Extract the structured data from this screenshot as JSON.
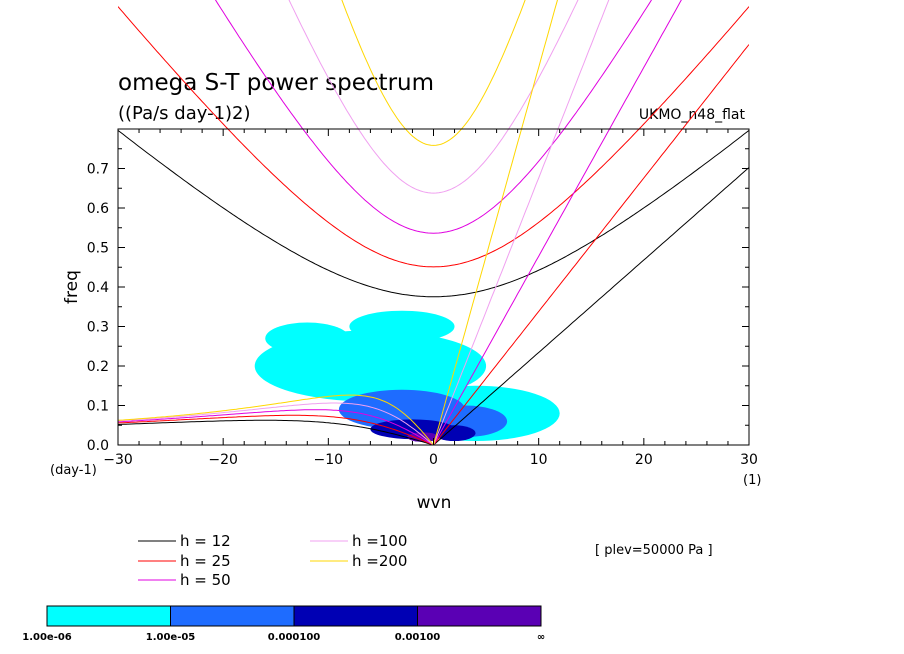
{
  "chart_data": {
    "type": "heatmap",
    "title": "omega S-T power spectrum",
    "subtitle": "((Pa/s day-1)2)",
    "run_label": "UKMO_n48_flat",
    "level_label": "[ plev=50000 Pa ]",
    "xlabel": "wvn",
    "ylabel": "freq",
    "x_unit": "(1)",
    "y_unit": "(day-1)",
    "xlim": [
      -30,
      30
    ],
    "ylim": [
      0,
      0.8
    ],
    "x_ticks": [
      "-30",
      "-20",
      "-10",
      "0",
      "10",
      "20",
      "30"
    ],
    "y_ticks": [
      "0.0",
      "0.1",
      "0.2",
      "0.3",
      "0.4",
      "0.5",
      "0.6",
      "0.7"
    ],
    "grid": false,
    "colorbar": {
      "boundaries": [
        "1.00e-06",
        "1.00e-05",
        "0.000100",
        "0.00100",
        "∞"
      ],
      "colors": [
        "#00ffff",
        "#1e6cff",
        "#0000b4",
        "#5a00b4"
      ]
    },
    "dispersion_curves": [
      {
        "name": "h = 12",
        "color": "#000000"
      },
      {
        "name": "h = 25",
        "color": "#ff0000"
      },
      {
        "name": "h = 50",
        "color": "#e000e0"
      },
      {
        "name": "h =100",
        "color": "#f0a0f0"
      },
      {
        "name": "h =200",
        "color": "#ffd700"
      }
    ],
    "power_regions": [
      {
        "level": 0,
        "x": -6,
        "y": 0.2,
        "rx": 11,
        "ry": 0.09
      },
      {
        "level": 0,
        "x": -3,
        "y": 0.3,
        "rx": 5,
        "ry": 0.04
      },
      {
        "level": 0,
        "x": 4,
        "y": 0.08,
        "rx": 8,
        "ry": 0.07
      },
      {
        "level": 0,
        "x": -12,
        "y": 0.27,
        "rx": 4,
        "ry": 0.04
      },
      {
        "level": 1,
        "x": -3,
        "y": 0.09,
        "rx": 6,
        "ry": 0.05
      },
      {
        "level": 1,
        "x": 3,
        "y": 0.06,
        "rx": 4,
        "ry": 0.04
      },
      {
        "level": 2,
        "x": -2,
        "y": 0.04,
        "rx": 4,
        "ry": 0.025
      },
      {
        "level": 2,
        "x": 2,
        "y": 0.03,
        "rx": 2,
        "ry": 0.02
      },
      {
        "level": 3,
        "x": -1,
        "y": 0.02,
        "rx": 1.5,
        "ry": 0.012
      }
    ]
  }
}
